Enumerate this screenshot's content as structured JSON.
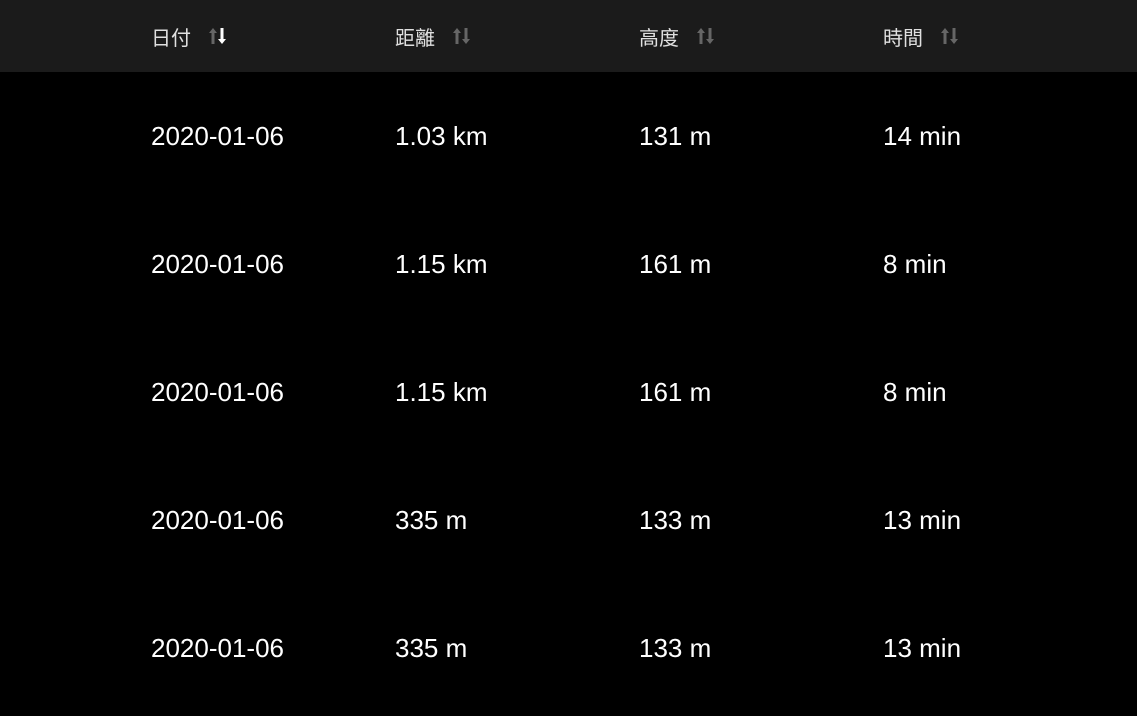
{
  "table": {
    "columns": [
      {
        "label": "日付",
        "sort": "descending"
      },
      {
        "label": "距離",
        "sort": "none"
      },
      {
        "label": "高度",
        "sort": "none"
      },
      {
        "label": "時間",
        "sort": "none"
      }
    ],
    "rows": [
      [
        "2020-01-06",
        "1.03 km",
        "131 m",
        "14 min"
      ],
      [
        "2020-01-06",
        "1.15 km",
        "161 m",
        "8 min"
      ],
      [
        "2020-01-06",
        "1.15 km",
        "161 m",
        "8 min"
      ],
      [
        "2020-01-06",
        "335 m",
        "133 m",
        "13 min"
      ],
      [
        "2020-01-06",
        "335 m",
        "133 m",
        "13 min"
      ]
    ]
  },
  "colors": {
    "header_bg": "#1b1b1b",
    "background": "#000000",
    "sort_inactive": "#666666",
    "sort_active": "#ffffff"
  }
}
